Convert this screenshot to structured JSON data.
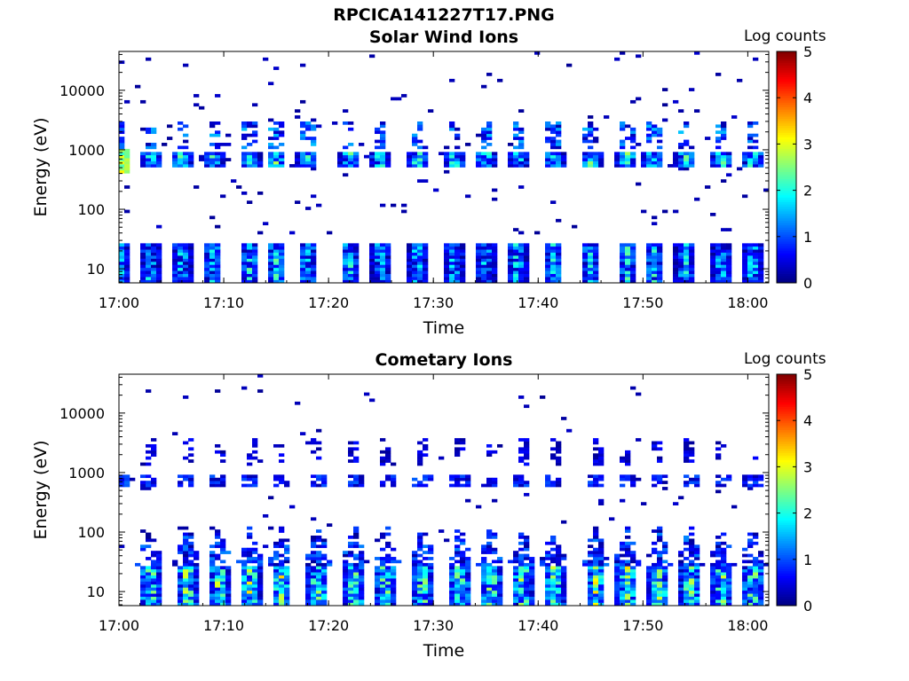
{
  "figure_title": "RPCICA141227T17.PNG",
  "colorbar": {
    "label": "Log counts",
    "ticks": [
      "0",
      "1",
      "2",
      "3",
      "4",
      "5"
    ],
    "range": [
      0,
      5
    ],
    "colormap": "jet"
  },
  "chart_data": [
    {
      "type": "heatmap",
      "title": "Solar Wind Ions",
      "xlabel": "Time",
      "ylabel": "Energy (eV)",
      "x_ticks": [
        "17:00",
        "17:10",
        "17:20",
        "17:30",
        "17:40",
        "17:50",
        "18:00"
      ],
      "y_ticks": [
        "10",
        "100",
        "1000",
        "10000"
      ],
      "y_scale": "log",
      "ylim": [
        5.8,
        45000
      ],
      "xlim": [
        "17:00",
        "18:02"
      ],
      "color_range": [
        0,
        5
      ],
      "band_centers_eV": [
        660,
        1600,
        15
      ],
      "burst_times_min": [
        0,
        3,
        6,
        9,
        12.5,
        15,
        18,
        22,
        25,
        28.5,
        32,
        35,
        38,
        41.5,
        45,
        48.5,
        51,
        54,
        57.5,
        60.5
      ],
      "peak_log_counts": {
        "low_energy": 2.3,
        "high_energy": 2.8
      }
    },
    {
      "type": "heatmap",
      "title": "Cometary Ions",
      "xlabel": "Time",
      "ylabel": "Energy (eV)",
      "x_ticks": [
        "17:00",
        "17:10",
        "17:20",
        "17:30",
        "17:40",
        "17:50",
        "18:00"
      ],
      "y_ticks": [
        "10",
        "100",
        "1000",
        "10000"
      ],
      "y_scale": "log",
      "ylim": [
        5.8,
        45000
      ],
      "xlim": [
        "17:00",
        "18:02"
      ],
      "color_range": [
        0,
        5
      ],
      "band_centers_eV": [
        15,
        60,
        660,
        1600
      ],
      "burst_times_min": [
        3,
        6.5,
        9.5,
        12.5,
        15.5,
        19,
        22.5,
        25.5,
        29,
        32.5,
        35.5,
        38.5,
        41.5,
        45.5,
        48.5,
        51.5,
        54.5,
        57.5,
        60.5
      ],
      "peak_log_counts": {
        "low_energy": 3.2,
        "high_energy": 1.5
      }
    }
  ]
}
